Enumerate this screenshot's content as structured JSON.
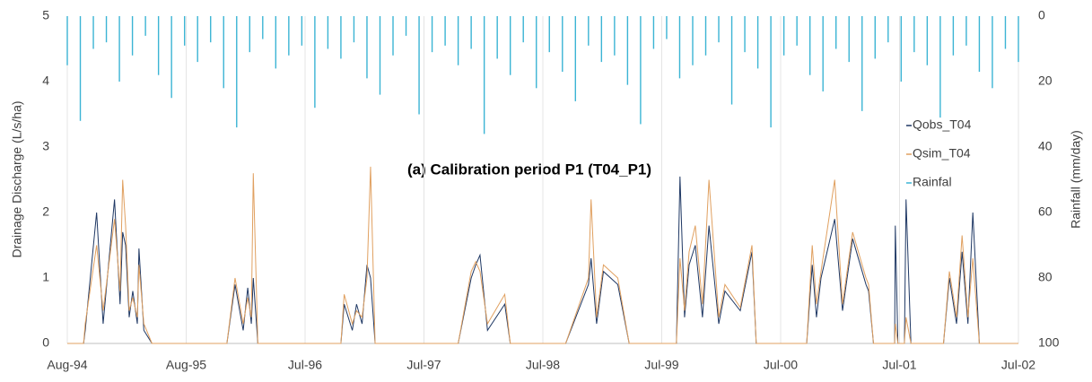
{
  "chart_data": {
    "type": "line",
    "annotation": "(a) Calibration period P1 (T04_P1)",
    "y_label": "Drainage Discharge (L/s/ha)",
    "y2_label": "Rainfall (mm/day)",
    "xlim": [
      0,
      2920
    ],
    "xticks": [
      {
        "value": 0,
        "label": "Aug-94"
      },
      {
        "value": 365,
        "label": "Aug-95"
      },
      {
        "value": 730,
        "label": "Jul-96"
      },
      {
        "value": 1095,
        "label": "Jul-97"
      },
      {
        "value": 1460,
        "label": "Jul-98"
      },
      {
        "value": 1825,
        "label": "Jul-99"
      },
      {
        "value": 2190,
        "label": "Jul-00"
      },
      {
        "value": 2555,
        "label": "Jul-01"
      },
      {
        "value": 2920,
        "label": "Jul-02"
      }
    ],
    "ylim": [
      0,
      5
    ],
    "yticks": [
      0,
      1,
      2,
      3,
      4,
      5
    ],
    "y2lim": [
      0,
      100
    ],
    "y2ticks": [
      0,
      20,
      40,
      60,
      80,
      100
    ],
    "y2_inverted": true,
    "grid": "x",
    "legend": "right",
    "series": [
      {
        "name": "Qobs_T04",
        "color": "#1f3864",
        "x": [
          0,
          50,
          55,
          90,
          110,
          145,
          162,
          170,
          179,
          190,
          201,
          215,
          220,
          235,
          260,
          490,
          515,
          540,
          554,
          565,
          571,
          585,
          840,
          850,
          875,
          888,
          905,
          920,
          931,
          945,
          1200,
          1240,
          1254,
          1267,
          1290,
          1343,
          1360,
          1530,
          1600,
          1608,
          1625,
          1646,
          1690,
          1725,
          1870,
          1881,
          1895,
          1909,
          1928,
          1950,
          1970,
          2000,
          2019,
          2066,
          2102,
          2115,
          2270,
          2287,
          2300,
          2314,
          2356,
          2380,
          2411,
          2452,
          2460,
          2475,
          2540,
          2542,
          2550,
          2570,
          2575,
          2590,
          2690,
          2708,
          2730,
          2747,
          2765,
          2780,
          2800,
          2920
        ],
        "values": [
          0,
          0,
          0.2,
          2.0,
          0.3,
          2.2,
          0.6,
          1.7,
          1.5,
          0.4,
          0.8,
          0.3,
          1.45,
          0.2,
          0,
          0,
          0.9,
          0.2,
          0.85,
          0.3,
          1.0,
          0,
          0,
          0.6,
          0.2,
          0.6,
          0.3,
          1.2,
          1.0,
          0,
          0,
          1.0,
          1.2,
          1.35,
          0.2,
          0.6,
          0,
          0,
          0.9,
          1.3,
          0.3,
          1.1,
          0.9,
          0,
          0,
          2.55,
          0.4,
          1.2,
          1.5,
          0.4,
          1.8,
          0.3,
          0.8,
          0.5,
          1.4,
          0,
          0,
          1.2,
          0.4,
          1.0,
          1.9,
          0.5,
          1.6,
          0.9,
          0.8,
          0,
          0,
          1.8,
          0,
          0,
          2.2,
          0,
          0,
          1.0,
          0.3,
          1.4,
          0.3,
          2.0,
          0,
          0
        ]
      },
      {
        "name": "Qsim_T04",
        "color": "#e0a060",
        "x": [
          0,
          50,
          55,
          90,
          110,
          145,
          162,
          170,
          179,
          190,
          201,
          215,
          220,
          235,
          260,
          490,
          515,
          540,
          554,
          565,
          571,
          585,
          840,
          850,
          875,
          888,
          905,
          920,
          931,
          945,
          1200,
          1240,
          1254,
          1267,
          1290,
          1343,
          1360,
          1530,
          1600,
          1608,
          1625,
          1646,
          1690,
          1725,
          1870,
          1881,
          1895,
          1909,
          1928,
          1950,
          1970,
          2000,
          2019,
          2066,
          2102,
          2115,
          2270,
          2287,
          2300,
          2314,
          2356,
          2380,
          2411,
          2452,
          2460,
          2475,
          2540,
          2542,
          2550,
          2570,
          2575,
          2590,
          2690,
          2708,
          2730,
          2747,
          2765,
          2780,
          2800,
          2920
        ],
        "values": [
          0,
          0,
          0.3,
          1.5,
          0.5,
          1.9,
          0.8,
          2.5,
          1.8,
          0.5,
          0.7,
          0.4,
          1.2,
          0.3,
          0,
          0,
          1.0,
          0.3,
          0.7,
          0.4,
          2.6,
          0,
          0,
          0.75,
          0.3,
          0.5,
          0.4,
          1.0,
          2.7,
          0,
          0,
          1.1,
          1.25,
          1.1,
          0.3,
          0.75,
          0,
          0,
          1.0,
          2.2,
          0.4,
          1.2,
          1.0,
          0,
          0,
          1.3,
          0.5,
          1.4,
          1.8,
          0.6,
          2.5,
          0.4,
          0.9,
          0.55,
          1.5,
          0,
          0,
          1.5,
          0.6,
          1.1,
          2.5,
          0.6,
          1.7,
          1.0,
          0.9,
          0,
          0,
          0.3,
          0,
          0,
          0.4,
          0,
          0,
          1.1,
          0.4,
          1.65,
          0.4,
          1.3,
          0,
          0
        ]
      },
      {
        "name": "Rainfal",
        "color": "#3bb4d4",
        "axis": "y2",
        "style": "bars",
        "x": [
          0,
          40,
          80,
          120,
          160,
          200,
          240,
          280,
          320,
          360,
          400,
          440,
          480,
          520,
          560,
          600,
          640,
          680,
          720,
          760,
          800,
          840,
          880,
          920,
          960,
          1000,
          1040,
          1080,
          1120,
          1160,
          1200,
          1240,
          1280,
          1320,
          1360,
          1400,
          1440,
          1480,
          1520,
          1560,
          1600,
          1640,
          1680,
          1720,
          1760,
          1800,
          1840,
          1880,
          1920,
          1960,
          2000,
          2040,
          2080,
          2120,
          2160,
          2200,
          2240,
          2280,
          2320,
          2360,
          2400,
          2440,
          2480,
          2520,
          2560,
          2600,
          2640,
          2680,
          2720,
          2760,
          2800,
          2840,
          2880,
          2920
        ],
        "values": [
          15,
          32,
          10,
          8,
          20,
          12,
          6,
          18,
          25,
          9,
          14,
          8,
          22,
          34,
          11,
          7,
          16,
          12,
          9,
          28,
          10,
          13,
          8,
          19,
          24,
          12,
          6,
          30,
          11,
          9,
          15,
          10,
          36,
          13,
          18,
          8,
          22,
          11,
          17,
          26,
          9,
          14,
          12,
          21,
          33,
          10,
          7,
          19,
          15,
          12,
          8,
          27,
          11,
          16,
          34,
          12,
          9,
          18,
          23,
          10,
          14,
          29,
          13,
          8,
          20,
          11,
          15,
          31,
          12,
          9,
          17,
          22,
          10,
          14
        ]
      }
    ]
  }
}
